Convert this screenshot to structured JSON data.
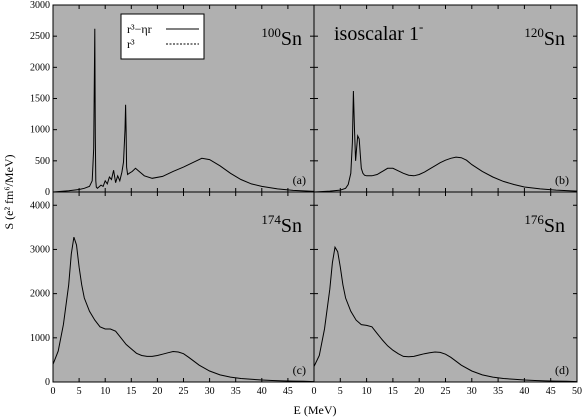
{
  "figure": {
    "annotation": "isoscalar 1",
    "annotation_sup": "-",
    "ylabel": "S (e² fm⁶/MeV)",
    "xlabel": "E (MeV)",
    "bg_color": "#b0b0b0",
    "line_color": "#000000"
  },
  "legend": {
    "entries": [
      {
        "label": "r³−ηr",
        "style": "solid"
      },
      {
        "label": "r³",
        "style": "dotted"
      }
    ]
  },
  "chart_data": [
    {
      "type": "line",
      "panel": "(a)",
      "nucleus": "Sn",
      "mass": "100",
      "xlim": [
        0,
        50
      ],
      "ylim": [
        0,
        3000
      ],
      "xticks": [
        0,
        5,
        10,
        15,
        20,
        25,
        30,
        35,
        40,
        45,
        50
      ],
      "yticks": [
        0,
        500,
        1000,
        1500,
        2000,
        2500,
        3000
      ],
      "series": [
        {
          "x": [
            0,
            3,
            5,
            6,
            7,
            7.5,
            7.8,
            8.0,
            8.1,
            8.2,
            8.3,
            8.5,
            8.8,
            9.2,
            9.6,
            10.0,
            10.4,
            10.8,
            11.2,
            11.6,
            12.0,
            12.4,
            12.8,
            13.2,
            13.5,
            13.8,
            13.9,
            14.0,
            14.1,
            14.3,
            14.6,
            15.2,
            15.8,
            16.5,
            17.5,
            19,
            21,
            23,
            25,
            27,
            28.5,
            30,
            32,
            34,
            36,
            38,
            40,
            43,
            46,
            50
          ],
          "y": [
            0,
            20,
            40,
            60,
            90,
            180,
            700,
            2620,
            900,
            180,
            80,
            60,
            80,
            110,
            90,
            180,
            130,
            240,
            200,
            350,
            150,
            260,
            180,
            320,
            480,
            1000,
            1400,
            1000,
            400,
            280,
            300,
            330,
            380,
            330,
            260,
            220,
            250,
            330,
            400,
            480,
            540,
            520,
            420,
            300,
            200,
            130,
            90,
            50,
            25,
            10
          ]
        }
      ]
    },
    {
      "type": "line",
      "panel": "(b)",
      "nucleus": "Sn",
      "mass": "120",
      "xlim": [
        0,
        50
      ],
      "ylim": [
        0,
        3000
      ],
      "xticks": [
        0,
        5,
        10,
        15,
        20,
        25,
        30,
        35,
        40,
        45,
        50
      ],
      "yticks": [
        0,
        500,
        1000,
        1500,
        2000,
        2500,
        3000
      ],
      "series": [
        {
          "x": [
            0,
            3,
            5,
            6,
            6.5,
            7,
            7.3,
            7.5,
            7.7,
            7.9,
            8.1,
            8.3,
            8.6,
            8.8,
            9.0,
            9.3,
            9.6,
            10,
            11,
            12,
            13,
            14,
            15,
            16,
            17,
            18,
            19,
            20,
            21,
            22,
            23,
            24,
            25,
            26,
            27,
            28,
            29,
            30,
            32,
            34,
            36,
            38,
            40,
            43,
            46,
            50
          ],
          "y": [
            0,
            15,
            30,
            60,
            120,
            300,
            800,
            1620,
            1000,
            500,
            700,
            900,
            850,
            600,
            380,
            300,
            270,
            260,
            260,
            280,
            330,
            380,
            380,
            340,
            300,
            270,
            260,
            280,
            320,
            370,
            420,
            470,
            510,
            540,
            560,
            550,
            510,
            440,
            330,
            240,
            170,
            120,
            80,
            50,
            30,
            15
          ]
        }
      ]
    },
    {
      "type": "line",
      "panel": "(c)",
      "nucleus": "Sn",
      "mass": "174",
      "xlim": [
        0,
        50
      ],
      "ylim": [
        0,
        4300
      ],
      "xticks": [
        0,
        5,
        10,
        15,
        20,
        25,
        30,
        35,
        40,
        45,
        50
      ],
      "yticks": [
        0,
        1000,
        2000,
        3000,
        4000
      ],
      "series": [
        {
          "x": [
            0,
            1,
            2,
            3,
            3.5,
            4,
            4.5,
            5,
            5.5,
            6,
            7,
            8,
            9,
            10,
            11,
            12,
            13,
            14,
            15,
            16,
            17,
            18,
            19,
            20,
            21,
            22,
            23,
            24,
            25,
            26,
            27,
            28,
            30,
            32,
            34,
            36,
            38,
            40,
            42,
            44,
            46,
            48,
            50
          ],
          "y": [
            400,
            700,
            1300,
            2200,
            2900,
            3280,
            3100,
            2600,
            2200,
            1900,
            1600,
            1400,
            1250,
            1200,
            1200,
            1150,
            1000,
            850,
            750,
            650,
            600,
            580,
            580,
            600,
            630,
            660,
            690,
            680,
            640,
            560,
            470,
            380,
            250,
            160,
            110,
            80,
            60,
            45,
            35,
            25,
            20,
            15,
            10
          ]
        }
      ]
    },
    {
      "type": "line",
      "panel": "(d)",
      "nucleus": "Sn",
      "mass": "176",
      "xlim": [
        0,
        50
      ],
      "ylim": [
        0,
        4300
      ],
      "xticks": [
        0,
        5,
        10,
        15,
        20,
        25,
        30,
        35,
        40,
        45,
        50
      ],
      "yticks": [
        0,
        1000,
        2000,
        3000,
        4000
      ],
      "series": [
        {
          "x": [
            0,
            1,
            2,
            3,
            3.5,
            4,
            4.5,
            5,
            5.5,
            6,
            7,
            8,
            9,
            10,
            11,
            12,
            13,
            14,
            15,
            16,
            17,
            18,
            19,
            20,
            21,
            22,
            23,
            24,
            25,
            26,
            27,
            28,
            30,
            32,
            34,
            36,
            38,
            40,
            42,
            44,
            46,
            48,
            50
          ],
          "y": [
            350,
            600,
            1200,
            2100,
            2700,
            3050,
            2950,
            2600,
            2200,
            1900,
            1600,
            1400,
            1300,
            1280,
            1250,
            1100,
            950,
            820,
            720,
            640,
            580,
            570,
            580,
            610,
            640,
            660,
            680,
            670,
            630,
            560,
            470,
            380,
            250,
            160,
            110,
            80,
            60,
            45,
            35,
            25,
            20,
            15,
            10
          ]
        }
      ]
    }
  ]
}
